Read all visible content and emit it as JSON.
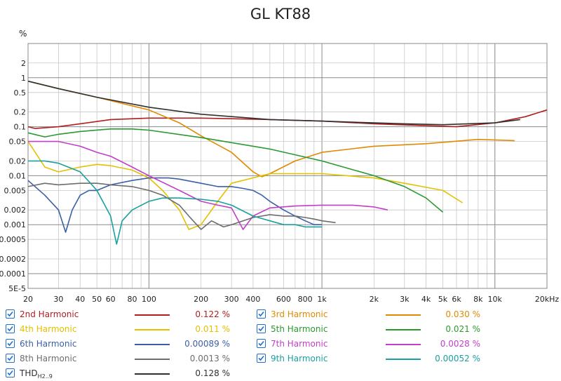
{
  "chart_data": {
    "type": "line",
    "title": "GL KT88",
    "ylabel": "%",
    "xlabel": "",
    "xscale": "log",
    "yscale": "log",
    "xlim": [
      20,
      20000
    ],
    "ylim": [
      5e-05,
      5
    ],
    "grid": true,
    "x_ticks": [
      "20",
      "30",
      "40",
      "50",
      "60",
      "80",
      "100",
      "200",
      "300",
      "400",
      "600",
      "800",
      "1k",
      "2k",
      "3k",
      "4k",
      "5k",
      "6k",
      "8k",
      "10k",
      "20kHz"
    ],
    "y_ticks": [
      "5E-5",
      "0.0001",
      "0.0002",
      "0.0005",
      "0.001",
      "0.002",
      "0.005",
      "0.01",
      "0.02",
      "0.05",
      "0.1",
      "0.2",
      "0.5",
      "1",
      "2"
    ],
    "series": [
      {
        "name": "2nd Harmonic",
        "color": "#b01e1e",
        "value": "0.122 %",
        "x": [
          20,
          22,
          25,
          30,
          40,
          60,
          100,
          200,
          500,
          1000,
          2000,
          4000,
          6000,
          10000,
          15000,
          20000
        ],
        "y": [
          0.1,
          0.092,
          0.095,
          0.1,
          0.115,
          0.14,
          0.15,
          0.15,
          0.14,
          0.13,
          0.115,
          0.105,
          0.1,
          0.12,
          0.16,
          0.22
        ]
      },
      {
        "name": "3rd Harmonic",
        "color": "#e08a00",
        "value": "0.030 %",
        "x": [
          20,
          30,
          50,
          100,
          150,
          200,
          300,
          400,
          450,
          500,
          700,
          1000,
          2000,
          4000,
          8000,
          13000
        ],
        "y": [
          0.85,
          0.6,
          0.4,
          0.22,
          0.12,
          0.065,
          0.03,
          0.012,
          0.0095,
          0.011,
          0.02,
          0.03,
          0.04,
          0.045,
          0.055,
          0.052
        ]
      },
      {
        "name": "4th Harmonic",
        "color": "#e5c000",
        "value": "0.011 %",
        "x": [
          20,
          22,
          25,
          30,
          40,
          50,
          60,
          80,
          100,
          120,
          150,
          170,
          200,
          250,
          300,
          500,
          1000,
          2000,
          3000,
          5000,
          6500
        ],
        "y": [
          0.05,
          0.03,
          0.015,
          0.012,
          0.015,
          0.017,
          0.016,
          0.013,
          0.009,
          0.005,
          0.002,
          0.0008,
          0.001,
          0.003,
          0.007,
          0.011,
          0.011,
          0.009,
          0.007,
          0.005,
          0.0028
        ]
      },
      {
        "name": "5th Harmonic",
        "color": "#2a9a30",
        "value": "0.021 %",
        "x": [
          20,
          25,
          30,
          40,
          60,
          80,
          100,
          200,
          500,
          1000,
          2000,
          3000,
          4000,
          5000
        ],
        "y": [
          0.075,
          0.062,
          0.07,
          0.08,
          0.09,
          0.09,
          0.085,
          0.06,
          0.035,
          0.02,
          0.01,
          0.006,
          0.0035,
          0.0018
        ]
      },
      {
        "name": "6th Harmonic",
        "color": "#3a5fa8",
        "value": "0.00089 %",
        "x": [
          20,
          25,
          30,
          33,
          36,
          40,
          45,
          50,
          60,
          80,
          100,
          130,
          150,
          200,
          250,
          300,
          350,
          400,
          450,
          500,
          600,
          700,
          800,
          900,
          1000
        ],
        "y": [
          0.008,
          0.004,
          0.002,
          0.0007,
          0.002,
          0.004,
          0.005,
          0.005,
          0.0065,
          0.008,
          0.009,
          0.009,
          0.0085,
          0.007,
          0.006,
          0.006,
          0.0055,
          0.005,
          0.004,
          0.003,
          0.002,
          0.0015,
          0.0012,
          0.001,
          0.001
        ]
      },
      {
        "name": "7th Harmonic",
        "color": "#c23ec8",
        "value": "0.0028 %",
        "x": [
          20,
          30,
          40,
          50,
          60,
          80,
          100,
          150,
          200,
          250,
          300,
          350,
          400,
          500,
          700,
          1000,
          1500,
          2000,
          2400
        ],
        "y": [
          0.05,
          0.05,
          0.04,
          0.03,
          0.025,
          0.015,
          0.01,
          0.005,
          0.003,
          0.0025,
          0.0022,
          0.0008,
          0.0015,
          0.0022,
          0.0024,
          0.0025,
          0.0025,
          0.0023,
          0.002
        ]
      },
      {
        "name": "8th Harmonic",
        "color": "#6d6d6d",
        "value": "0.0013 %",
        "x": [
          20,
          25,
          30,
          40,
          50,
          60,
          80,
          100,
          120,
          150,
          170,
          200,
          230,
          270,
          300,
          350,
          400,
          500,
          600,
          700,
          800,
          900,
          1000,
          1200
        ],
        "y": [
          0.006,
          0.007,
          0.0065,
          0.007,
          0.007,
          0.0065,
          0.006,
          0.005,
          0.004,
          0.0025,
          0.0015,
          0.0008,
          0.0012,
          0.0009,
          0.001,
          0.0012,
          0.0014,
          0.0016,
          0.0015,
          0.0015,
          0.0014,
          0.0013,
          0.0012,
          0.0011
        ]
      },
      {
        "name": "9th Harmonic",
        "color": "#1aa0a0",
        "value": "0.00052 %",
        "x": [
          20,
          25,
          30,
          40,
          50,
          60,
          65,
          70,
          80,
          100,
          120,
          150,
          200,
          250,
          300,
          400,
          500,
          600,
          700,
          800,
          1000
        ],
        "y": [
          0.02,
          0.02,
          0.018,
          0.012,
          0.005,
          0.0015,
          0.0004,
          0.0012,
          0.002,
          0.003,
          0.0035,
          0.0035,
          0.0033,
          0.003,
          0.0025,
          0.0015,
          0.0012,
          0.001,
          0.001,
          0.0009,
          0.0009
        ]
      },
      {
        "name": "THD",
        "name_sub": "H2..9",
        "color": "#303030",
        "value": "0.128 %",
        "x": [
          20,
          30,
          50,
          100,
          200,
          500,
          1000,
          2000,
          3000,
          5000,
          7000,
          10000,
          14000
        ],
        "y": [
          0.85,
          0.6,
          0.4,
          0.25,
          0.18,
          0.14,
          0.13,
          0.12,
          0.115,
          0.11,
          0.115,
          0.12,
          0.14
        ]
      }
    ]
  },
  "legend": {
    "left": [
      {
        "label": "2nd Harmonic",
        "value": "0.122 %",
        "color": "#b01e1e"
      },
      {
        "label": "4th Harmonic",
        "value": "0.011 %",
        "color": "#e5c000"
      },
      {
        "label": "6th Harmonic",
        "value": "0.00089 %",
        "color": "#3a5fa8"
      },
      {
        "label": "8th Harmonic",
        "value": "0.0013 %",
        "color": "#6d6d6d"
      },
      {
        "label": "THD",
        "label_sub": "H2..9",
        "value": "0.128 %",
        "color": "#303030"
      }
    ],
    "right": [
      {
        "label": "3rd Harmonic",
        "value": "0.030 %",
        "color": "#e08a00"
      },
      {
        "label": "5th Harmonic",
        "value": "0.021 %",
        "color": "#2a9a30"
      },
      {
        "label": "7th Harmonic",
        "value": "0.0028 %",
        "color": "#c23ec8"
      },
      {
        "label": "9th Harmonic",
        "value": "0.00052 %",
        "color": "#1aa0a0"
      }
    ]
  }
}
